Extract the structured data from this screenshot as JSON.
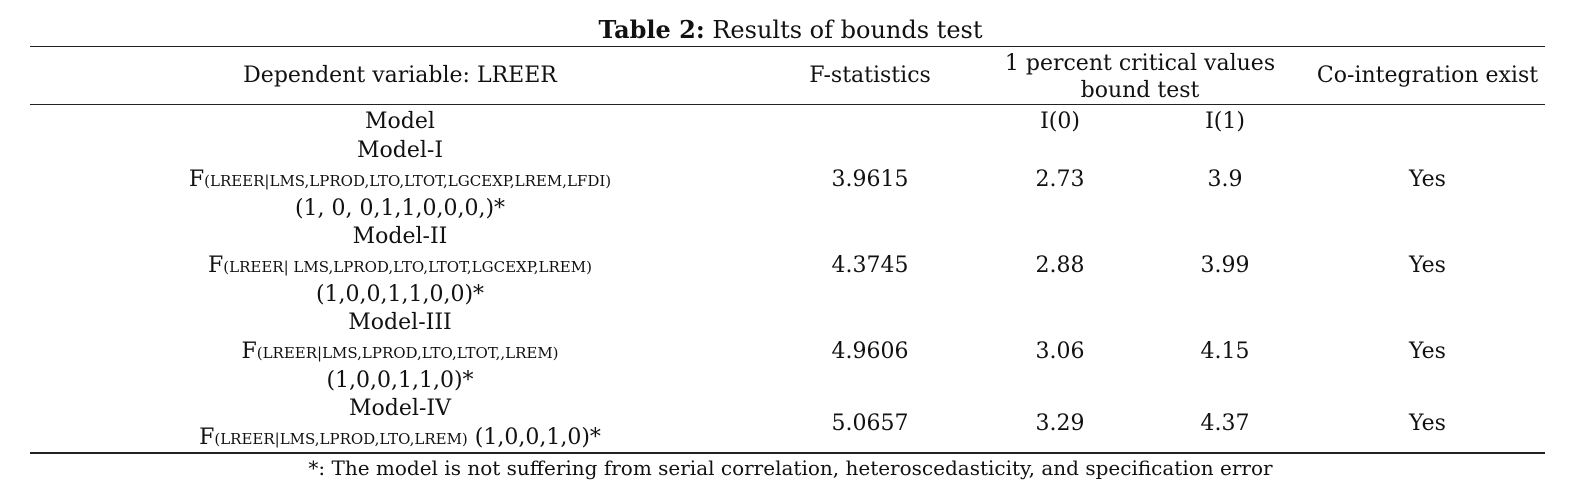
{
  "title": {
    "bold": "Table 2:",
    "rest": "Results of bounds test"
  },
  "header": {
    "dependent": "Dependent variable: LREER",
    "fstat": "F-statistics",
    "critical_line1": "1 percent critical values",
    "critical_line2": "bound test",
    "cointegration": "Co-integration exist"
  },
  "subheader": {
    "model": "Model",
    "i0": "I(0)",
    "i1": "I(1)"
  },
  "rows": [
    {
      "name": "Model-I",
      "f_prefix": "F",
      "f_sub": "(LREER|LMS,LPROD,LTO,LTOT,LGCEXP,LREM,LFDI)",
      "lags": "(1, 0, 0,1,1,0,0,0,)*",
      "fstat": "3.9615",
      "i0": "2.73",
      "i1": "3.9",
      "coint": "Yes"
    },
    {
      "name": "Model-II",
      "f_prefix": "F",
      "f_sub": "(LREER| LMS,LPROD,LTO,LTOT,LGCEXP,LREM)",
      "lags": "(1,0,0,1,1,0,0)*",
      "fstat": "4.3745",
      "i0": "2.88",
      "i1": "3.99",
      "coint": "Yes"
    },
    {
      "name": "Model-III",
      "f_prefix": "F",
      "f_sub": "(LREER|LMS,LPROD,LTO,LTOT,,LREM)",
      "lags": "(1,0,0,1,1,0)*",
      "fstat": "4.9606",
      "i0": "3.06",
      "i1": "4.15",
      "coint": "Yes"
    },
    {
      "name": "Model-IV",
      "f_prefix": "F",
      "f_sub": "(LREER|LMS,LPROD,LTO,LREM)",
      "lags": "(1,0,0,1,0)*",
      "fstat": "5.0657",
      "i0": "3.29",
      "i1": "4.37",
      "coint": "Yes"
    }
  ],
  "footnote": "*: The model is not suffering from serial correlation, heteroscedasticity, and specification error"
}
